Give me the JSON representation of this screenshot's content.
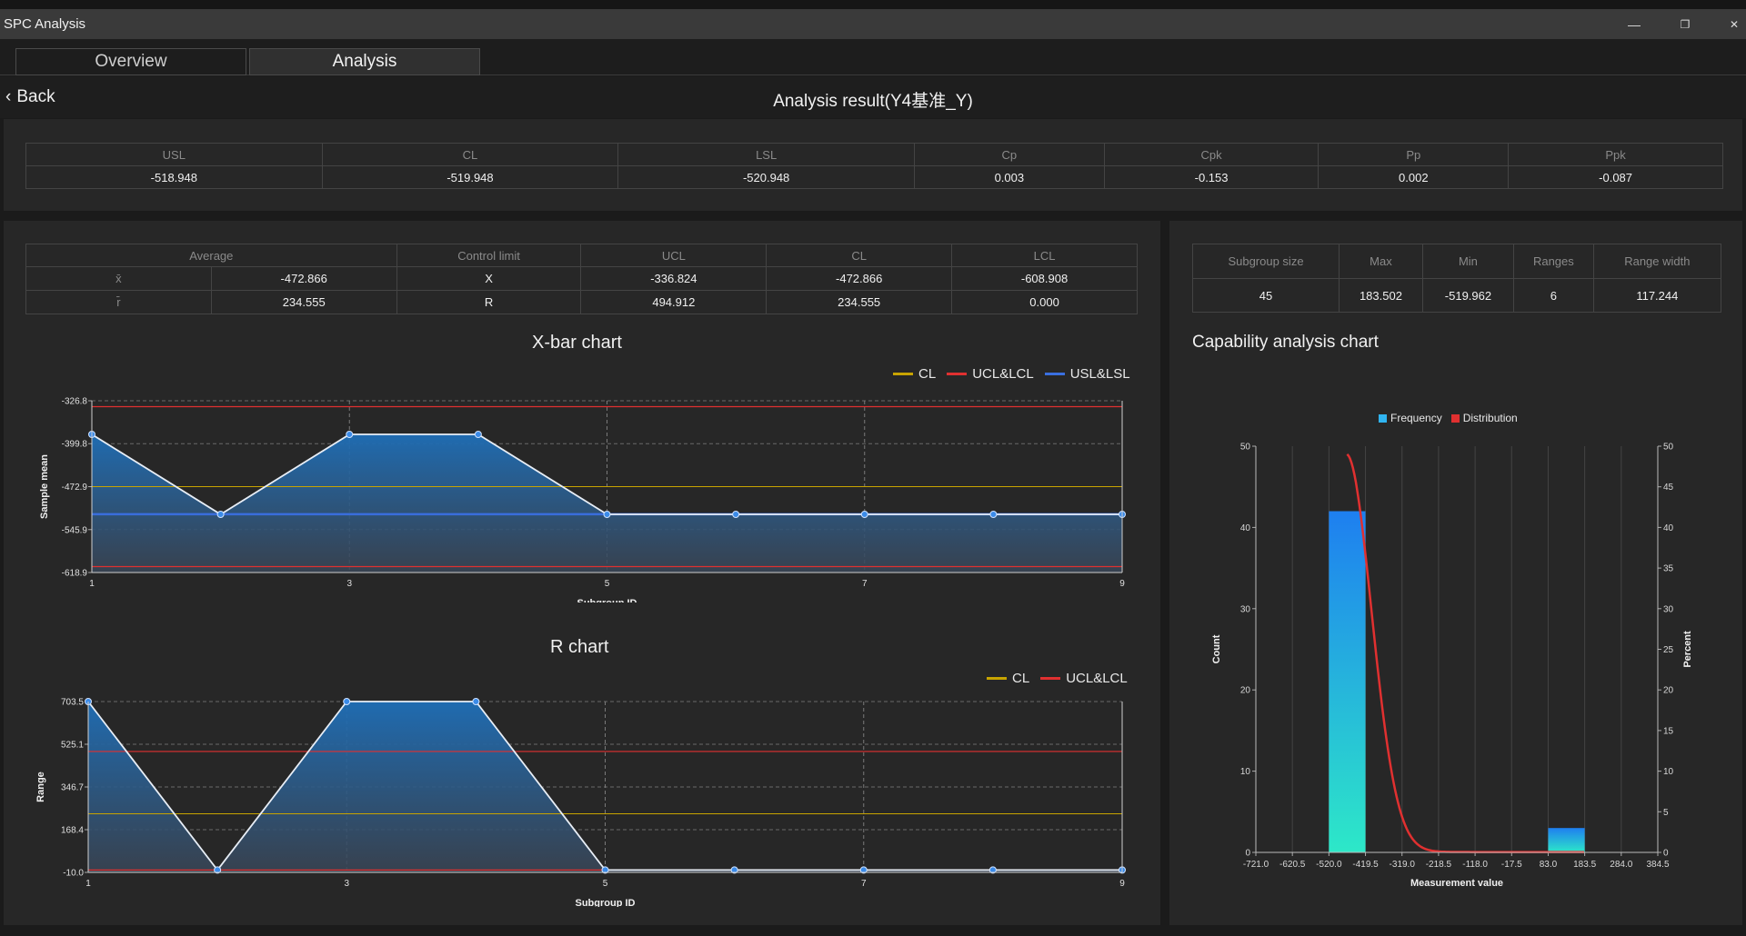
{
  "window": {
    "title": "SPC Analysis",
    "minimize": "—",
    "restore": "❐",
    "close": "✕"
  },
  "tabs": [
    {
      "label": "Overview",
      "active": false
    },
    {
      "label": "Analysis",
      "active": true
    }
  ],
  "nav": {
    "back_label": "Back",
    "back_icon": "‹",
    "page_title": "Analysis result(Y4基准_Y)"
  },
  "capability_table": {
    "headers": [
      "USL",
      "CL",
      "LSL",
      "Cp",
      "Cpk",
      "Pp",
      "Ppk"
    ],
    "values": [
      "-518.948",
      "-519.948",
      "-520.948",
      "0.003",
      "-0.153",
      "0.002",
      "-0.087"
    ]
  },
  "control_table": {
    "headers": [
      "Average",
      "",
      "Control limit",
      "UCL",
      "CL",
      "LCL"
    ],
    "rows": [
      [
        "x̄",
        "-472.866",
        "X",
        "-336.824",
        "-472.866",
        "-608.908"
      ],
      [
        "r̄",
        "234.555",
        "R",
        "494.912",
        "234.555",
        "0.000"
      ]
    ]
  },
  "subgroup_table": {
    "headers": [
      "Subgroup size",
      "Max",
      "Min",
      "Ranges",
      "Range width"
    ],
    "values": [
      "45",
      "183.502",
      "-519.962",
      "6",
      "117.244"
    ]
  },
  "colors": {
    "cl": "#c8a400",
    "ucl_lcl": "#e03030",
    "usl_lsl": "#3a6fe0",
    "area": "#1f6fb8",
    "bar_top": "#1e7ff0",
    "bar_bottom": "#2de8c8",
    "dist": "#e03030"
  },
  "xbar_chart": {
    "title": "X-bar chart",
    "legend": [
      "CL",
      "UCL&LCL",
      "USL&LSL"
    ],
    "xlabel": "Subgroup ID",
    "ylabel": "Sample mean",
    "yticks": [
      "-326.8",
      "-399.8",
      "-472.9",
      "-545.9",
      "-618.9"
    ],
    "xticks": [
      "1",
      "3",
      "5",
      "7",
      "9"
    ]
  },
  "r_chart": {
    "title": "R chart",
    "legend": [
      "CL",
      "UCL&LCL"
    ],
    "xlabel": "Subgroup ID",
    "ylabel": "Range",
    "yticks": [
      "703.5",
      "525.1",
      "346.7",
      "168.4",
      "-10.0"
    ],
    "xticks": [
      "1",
      "3",
      "5",
      "7",
      "9"
    ]
  },
  "capability_chart": {
    "title": "Capability analysis chart",
    "legend": [
      "Frequency",
      "Distribution"
    ],
    "xlabel": "Measurement value",
    "ylabel_left": "Count",
    "ylabel_right": "Percent",
    "left_ticks": [
      "50",
      "40",
      "30",
      "20",
      "10",
      "0"
    ],
    "right_ticks": [
      "50",
      "45",
      "40",
      "35",
      "30",
      "25",
      "20",
      "15",
      "10",
      "5",
      "0"
    ],
    "xticks": [
      "-721.0",
      "-620.5",
      "-520.0",
      "-419.5",
      "-319.0",
      "-218.5",
      "-118.0",
      "-17.5",
      "83.0",
      "183.5",
      "284.0",
      "384.5"
    ]
  },
  "chart_data": [
    {
      "type": "line",
      "title": "X-bar chart",
      "xlabel": "Subgroup ID",
      "ylabel": "Sample mean",
      "x": [
        1,
        2,
        3,
        4,
        5,
        6,
        7,
        8,
        9
      ],
      "ylim": [
        -618.9,
        -326.8
      ],
      "series": [
        {
          "name": "Sample mean",
          "values": [
            -384,
            -520,
            -384,
            -384,
            -520,
            -520,
            -520,
            -520,
            -520
          ]
        }
      ],
      "lines": {
        "CL": -472.866,
        "UCL": -336.824,
        "LCL": -608.908,
        "USL": -518.948,
        "LSL": -520.948
      }
    },
    {
      "type": "line",
      "title": "R chart",
      "xlabel": "Subgroup ID",
      "ylabel": "Range",
      "x": [
        1,
        2,
        3,
        4,
        5,
        6,
        7,
        8,
        9
      ],
      "ylim": [
        -10.0,
        703.5
      ],
      "series": [
        {
          "name": "Range",
          "values": [
            703.5,
            0,
            703.5,
            703.5,
            0,
            0,
            0,
            0,
            0
          ]
        }
      ],
      "lines": {
        "CL": 234.555,
        "UCL": 494.912,
        "LCL": 0
      }
    },
    {
      "type": "bar",
      "title": "Capability analysis chart",
      "xlabel": "Measurement value",
      "ylabel": "Count",
      "xlim": [
        -721.0,
        384.5
      ],
      "ylim": [
        0,
        50
      ],
      "bins": [
        {
          "from": -520.0,
          "to": -419.5,
          "count": 42
        },
        {
          "from": 83.0,
          "to": 183.5,
          "count": 3
        }
      ],
      "series": [
        {
          "name": "Frequency"
        },
        {
          "name": "Distribution"
        }
      ]
    }
  ]
}
